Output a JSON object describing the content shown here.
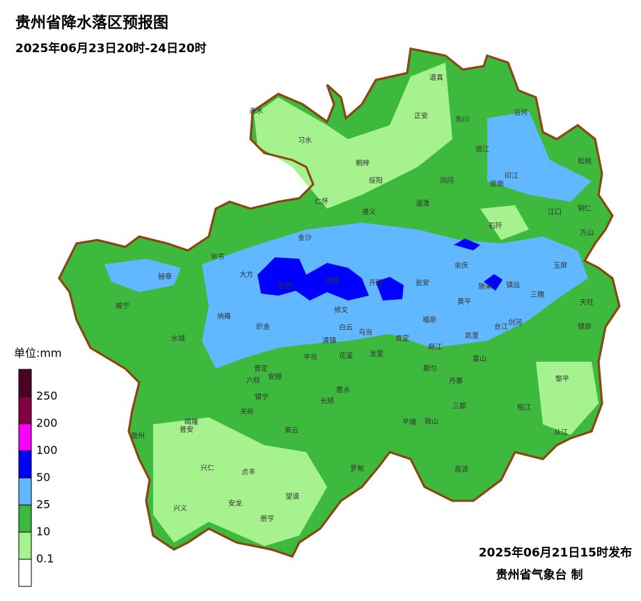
{
  "title": "贵州省降水落区预报图",
  "subtitle": "2025年06月23日20时-24日20时",
  "legend": {
    "unit": "单位:mm",
    "levels": [
      0.1,
      10,
      25,
      50,
      100,
      200,
      250
    ],
    "colors": [
      "#ffffff",
      "#a6f28f",
      "#3dba3d",
      "#61b8ff",
      "#0000ff",
      "#fa00fa",
      "#800040",
      "#4d0026"
    ]
  },
  "counties": [
    "赤水",
    "习水",
    "道真",
    "正安",
    "务川",
    "沿河",
    "桐梓",
    "德江",
    "松桃",
    "绥阳",
    "凤冈",
    "印江",
    "思南",
    "仁怀",
    "湄潭",
    "江口",
    "铜仁",
    "遵义",
    "石阡",
    "万山",
    "金沙",
    "毕节",
    "赫章",
    "大方",
    "余庆",
    "玉屏",
    "黔西",
    "息烽",
    "开阳",
    "瓮安",
    "施秉",
    "镇远",
    "三穗",
    "天柱",
    "威宁",
    "黄平",
    "修文",
    "纳雍",
    "织金",
    "福泉",
    "台江",
    "剑河",
    "锦屏",
    "白云",
    "乌当",
    "清镇",
    "贵定",
    "凯里",
    "水城",
    "平坝",
    "花溪",
    "龙里",
    "麻江",
    "雷山",
    "普定",
    "安顺",
    "都匀",
    "丹寨",
    "黎平",
    "六枝",
    "惠水",
    "镇宁",
    "长顺",
    "三都",
    "榕江",
    "关岭",
    "晴隆",
    "平塘",
    "独山",
    "普安",
    "紫云",
    "从江",
    "盘州",
    "兴仁",
    "贞丰",
    "罗甸",
    "荔波",
    "望谟",
    "兴义",
    "安龙",
    "册亨"
  ],
  "footer": {
    "issued": "2025年06月21日15时发布",
    "agency": "贵州省气象台 制"
  }
}
